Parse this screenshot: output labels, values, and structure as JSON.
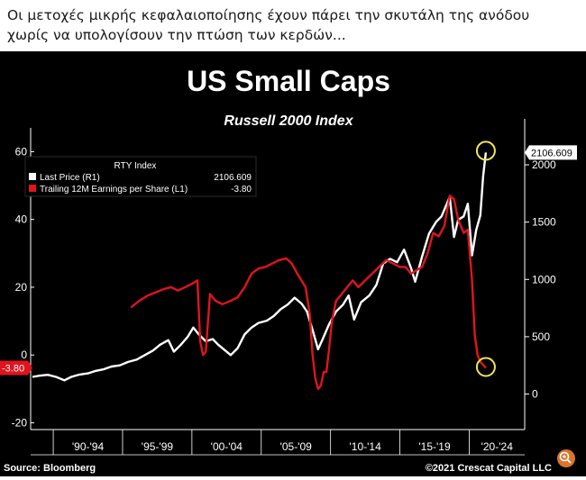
{
  "caption": "Οι μετοχές μικρής κεφαλαιοποίησης έχουν πάρει την σκυτάλη της ανόδου χωρίς να υπολογίσουν την πτώση των κερδών...",
  "colors": {
    "background": "#000000",
    "price_line": "#ffffff",
    "eps_line": "#e0141e",
    "highlight_circle": "#f2e35c",
    "axis_text": "#ffffff"
  },
  "chart_data": {
    "type": "line",
    "title": "US Small Caps",
    "subtitle": "Russell 2000 Index",
    "legend": {
      "header": "RTY Index",
      "placement": "top-left",
      "entries": [
        {
          "label": "Last Price  (R1)",
          "value": "2106.609",
          "color": "#ffffff"
        },
        {
          "label": "Trailing 12M Earnings per Share  (L1)",
          "value": "-3.80",
          "color": "#e0141e"
        }
      ]
    },
    "x_tick_labels": [
      "'90-'94",
      "'95-'99",
      "'00-'04",
      "'05-'09",
      "'10-'14",
      "'15-'19",
      "'20-'24"
    ],
    "xlim": [
      1988.5,
      2024
    ],
    "left_axis": {
      "ticks": [
        "60",
        "40",
        "20",
        "0",
        "-20"
      ],
      "ylim": [
        -22,
        71
      ],
      "last_value_label": "-3.80"
    },
    "right_axis": {
      "ticks": [
        "2000",
        "1500",
        "1000",
        "500",
        "0"
      ],
      "ylim": [
        -310,
        2440
      ],
      "last_value_label": "2106.609"
    },
    "series": [
      {
        "name": "Last Price  (R1)",
        "axis": "right",
        "color": "#ffffff",
        "points": [
          [
            1988.5,
            150
          ],
          [
            1989,
            160
          ],
          [
            1989.6,
            168
          ],
          [
            1990.2,
            150
          ],
          [
            1990.8,
            120
          ],
          [
            1991.3,
            150
          ],
          [
            1991.9,
            170
          ],
          [
            1992.5,
            180
          ],
          [
            1993,
            200
          ],
          [
            1993.6,
            215
          ],
          [
            1994.2,
            240
          ],
          [
            1994.8,
            250
          ],
          [
            1995.4,
            280
          ],
          [
            1996,
            300
          ],
          [
            1996.6,
            340
          ],
          [
            1997.2,
            380
          ],
          [
            1997.7,
            430
          ],
          [
            1998.3,
            470
          ],
          [
            1998.7,
            370
          ],
          [
            1999.2,
            430
          ],
          [
            1999.7,
            500
          ],
          [
            2000.1,
            580
          ],
          [
            2000.5,
            520
          ],
          [
            2001,
            460
          ],
          [
            2001.5,
            480
          ],
          [
            2001.9,
            430
          ],
          [
            2002.4,
            380
          ],
          [
            2002.8,
            340
          ],
          [
            2003.3,
            400
          ],
          [
            2003.8,
            520
          ],
          [
            2004.3,
            580
          ],
          [
            2004.8,
            620
          ],
          [
            2005.4,
            640
          ],
          [
            2005.9,
            680
          ],
          [
            2006.4,
            740
          ],
          [
            2006.9,
            780
          ],
          [
            2007.4,
            840
          ],
          [
            2007.9,
            790
          ],
          [
            2008.3,
            720
          ],
          [
            2008.7,
            560
          ],
          [
            2009.1,
            390
          ],
          [
            2009.4,
            470
          ],
          [
            2009.9,
            610
          ],
          [
            2010.4,
            720
          ],
          [
            2010.9,
            780
          ],
          [
            2011.3,
            860
          ],
          [
            2011.7,
            650
          ],
          [
            2012.2,
            800
          ],
          [
            2012.8,
            860
          ],
          [
            2013.3,
            950
          ],
          [
            2013.8,
            1140
          ],
          [
            2014.3,
            1180
          ],
          [
            2014.8,
            1150
          ],
          [
            2015.3,
            1260
          ],
          [
            2015.8,
            1100
          ],
          [
            2016.1,
            980
          ],
          [
            2016.6,
            1200
          ],
          [
            2017.1,
            1400
          ],
          [
            2017.6,
            1500
          ],
          [
            2018,
            1550
          ],
          [
            2018.6,
            1720
          ],
          [
            2018.9,
            1370
          ],
          [
            2019.2,
            1520
          ],
          [
            2019.6,
            1550
          ],
          [
            2019.9,
            1660
          ],
          [
            2020.2,
            1210
          ],
          [
            2020.5,
            1430
          ],
          [
            2020.8,
            1560
          ],
          [
            2021,
            1900
          ],
          [
            2021.2,
            2106.609
          ]
        ]
      },
      {
        "name": "Trailing 12M Earnings per Share  (L1)",
        "axis": "left",
        "color": "#e0141e",
        "points": [
          [
            1995.6,
            14
          ],
          [
            1996.2,
            16
          ],
          [
            1996.8,
            17.5
          ],
          [
            1997.4,
            18.5
          ],
          [
            1998,
            19.5
          ],
          [
            1998.5,
            20
          ],
          [
            1999,
            19
          ],
          [
            1999.5,
            20
          ],
          [
            2000,
            21
          ],
          [
            2000.4,
            22
          ],
          [
            2000.6,
            4
          ],
          [
            2000.8,
            0
          ],
          [
            2001,
            1
          ],
          [
            2001.3,
            18
          ],
          [
            2001.7,
            16
          ],
          [
            2002.2,
            15
          ],
          [
            2002.8,
            16
          ],
          [
            2003.3,
            17
          ],
          [
            2003.8,
            20
          ],
          [
            2004.3,
            24
          ],
          [
            2004.8,
            25.5
          ],
          [
            2005.3,
            26
          ],
          [
            2005.8,
            27
          ],
          [
            2006.3,
            28
          ],
          [
            2006.8,
            28.5
          ],
          [
            2007.2,
            27
          ],
          [
            2007.6,
            24
          ],
          [
            2007.9,
            22
          ],
          [
            2008.2,
            20
          ],
          [
            2008.5,
            12
          ],
          [
            2008.7,
            0
          ],
          [
            2008.9,
            -7
          ],
          [
            2009.1,
            -10
          ],
          [
            2009.3,
            -9
          ],
          [
            2009.5,
            -5
          ],
          [
            2009.7,
            -5
          ],
          [
            2009.9,
            2
          ],
          [
            2010.1,
            10
          ],
          [
            2010.4,
            16
          ],
          [
            2010.8,
            18
          ],
          [
            2011.2,
            20
          ],
          [
            2011.6,
            22
          ],
          [
            2012,
            20
          ],
          [
            2012.5,
            22
          ],
          [
            2013,
            24
          ],
          [
            2013.5,
            26
          ],
          [
            2014,
            28
          ],
          [
            2014.5,
            27
          ],
          [
            2015,
            26
          ],
          [
            2015.4,
            26
          ],
          [
            2015.8,
            24
          ],
          [
            2016.2,
            25
          ],
          [
            2016.6,
            26
          ],
          [
            2017,
            30
          ],
          [
            2017.4,
            36
          ],
          [
            2017.8,
            35
          ],
          [
            2018.2,
            38
          ],
          [
            2018.6,
            47
          ],
          [
            2018.9,
            46
          ],
          [
            2019.2,
            40
          ],
          [
            2019.6,
            36
          ],
          [
            2019.9,
            37
          ],
          [
            2020.2,
            22
          ],
          [
            2020.4,
            6
          ],
          [
            2020.6,
            0
          ],
          [
            2020.8,
            -2
          ],
          [
            2021.2,
            -3.8
          ]
        ]
      }
    ],
    "annotations": [
      {
        "shape": "circle",
        "target": "latest price peak"
      },
      {
        "shape": "circle",
        "target": "latest EPS low"
      }
    ],
    "source_text": "Source: Bloomberg",
    "copyright_text": "©2021 Crescat Capital LLC",
    "grid": false
  }
}
